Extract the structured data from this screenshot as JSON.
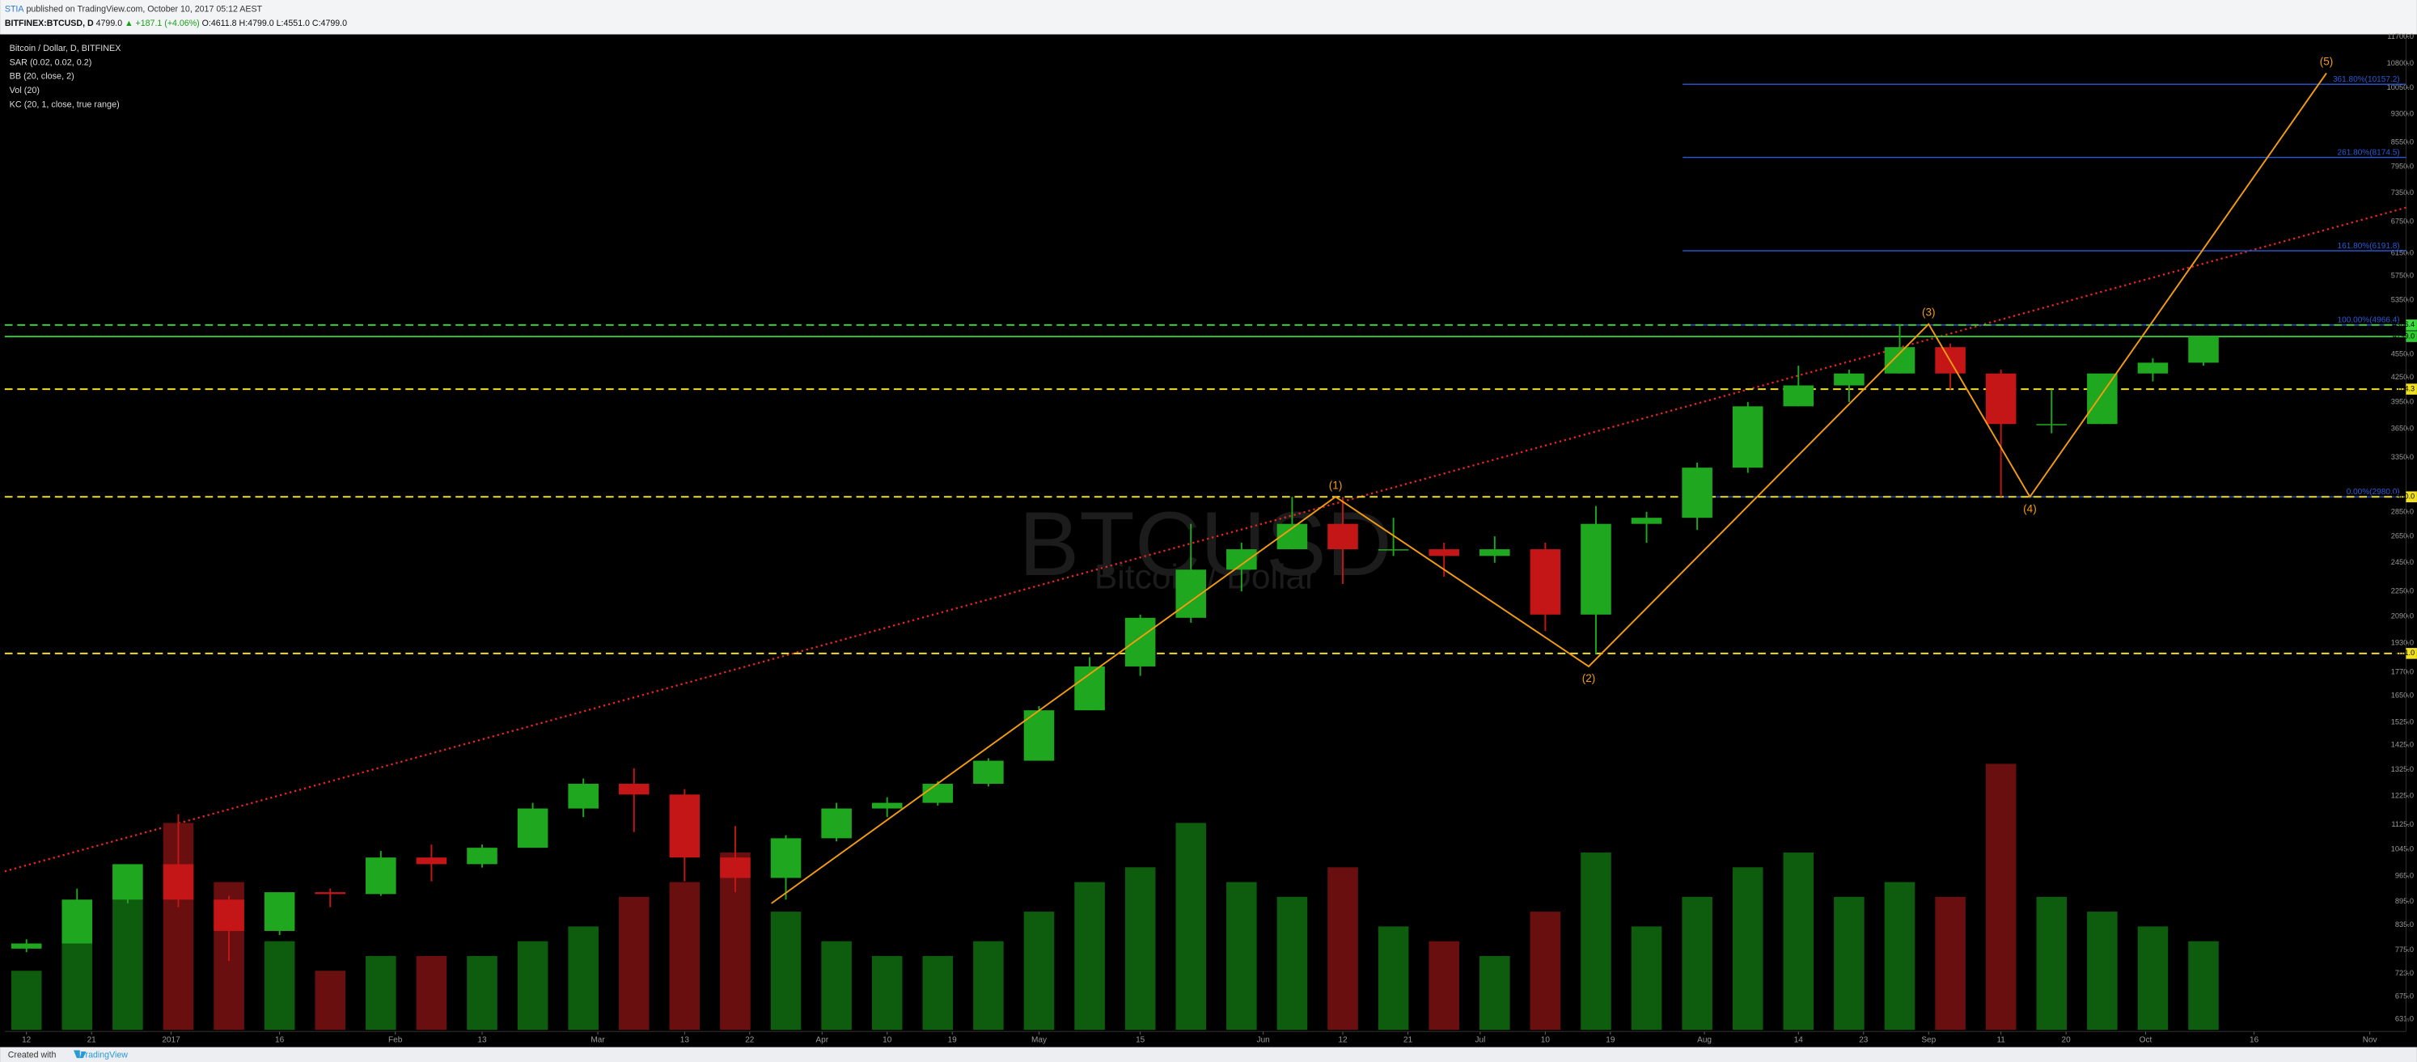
{
  "header": {
    "publisher": "STIA",
    "published": "published on TradingView.com, October 10, 2017 05:12 AEST",
    "symbol": "BITFINEX:BTCUSD, D",
    "last": "4799.0",
    "change": "▲ +187.1 (+4.06%)",
    "open": "O:4611.8",
    "high": "H:4799.0",
    "low": "L:4551.0",
    "close": "C:4799.0"
  },
  "legend": [
    "Bitcoin / Dollar, D, BITFINEX",
    "SAR (0.02, 0.02, 0.2)",
    "BB (20, close, 2)",
    "Vol (20)",
    "KC (20, 1, close, true range)"
  ],
  "footer": {
    "created": "Created with",
    "brand": "TradingView"
  },
  "chart_data": {
    "type": "candlestick",
    "watermark": "BTCUSD",
    "watermark_sub": "Bitcoin / Dollar",
    "log_scale": true,
    "up_color": "#1fa81f",
    "down_color": "#c41616",
    "volume_up_color": "#0e5c0e",
    "volume_down_color": "#6a0f0f",
    "x": [
      "2016-12-12",
      "2016-12-19",
      "2016-12-26",
      "2017-01-02",
      "2017-01-09",
      "2017-01-16",
      "2017-01-23",
      "2017-01-30",
      "2017-02-06",
      "2017-02-13",
      "2017-02-20",
      "2017-02-27",
      "2017-03-06",
      "2017-03-13",
      "2017-03-20",
      "2017-03-27",
      "2017-04-03",
      "2017-04-10",
      "2017-04-17",
      "2017-04-24",
      "2017-05-01",
      "2017-05-08",
      "2017-05-15",
      "2017-05-22",
      "2017-05-29",
      "2017-06-05",
      "2017-06-12",
      "2017-06-19",
      "2017-06-26",
      "2017-07-03",
      "2017-07-10",
      "2017-07-17",
      "2017-07-24",
      "2017-07-31",
      "2017-08-07",
      "2017-08-14",
      "2017-08-21",
      "2017-08-28",
      "2017-09-04",
      "2017-09-11",
      "2017-09-18",
      "2017-09-25",
      "2017-10-02",
      "2017-10-09"
    ],
    "open": [
      778,
      790,
      900,
      1000,
      900,
      820,
      920,
      915,
      1020,
      1000,
      1050,
      1180,
      1270,
      1230,
      1020,
      960,
      1080,
      1180,
      1200,
      1270,
      1360,
      1580,
      1800,
      2080,
      2400,
      2550,
      2750,
      2550,
      2550,
      2500,
      2550,
      2100,
      2750,
      2800,
      3250,
      3900,
      4150,
      4300,
      4650,
      4300,
      3700,
      3700,
      4300,
      4440
    ],
    "high": [
      800,
      930,
      1000,
      1160,
      910,
      920,
      930,
      1040,
      1060,
      1060,
      1200,
      1290,
      1330,
      1250,
      1120,
      1090,
      1200,
      1220,
      1280,
      1370,
      1600,
      1850,
      2100,
      2750,
      2600,
      2980,
      2980,
      2800,
      2600,
      2650,
      2600,
      2900,
      2850,
      3300,
      3950,
      4400,
      4350,
      4980,
      4700,
      4350,
      4100,
      4250,
      4500,
      4799
    ],
    "low": [
      770,
      790,
      890,
      880,
      750,
      810,
      880,
      910,
      950,
      990,
      1050,
      1150,
      1100,
      950,
      920,
      900,
      1070,
      1150,
      1190,
      1260,
      1360,
      1580,
      1750,
      2050,
      2250,
      2550,
      2300,
      2500,
      2350,
      2450,
      2000,
      1870,
      2600,
      2700,
      3200,
      3900,
      3950,
      4300,
      4100,
      2980,
      3600,
      3700,
      4200,
      4400
    ],
    "close": [
      790,
      900,
      1000,
      900,
      820,
      920,
      915,
      1020,
      1000,
      1050,
      1180,
      1270,
      1230,
      1020,
      960,
      1080,
      1180,
      1200,
      1270,
      1360,
      1580,
      1800,
      2080,
      2400,
      2550,
      2750,
      2550,
      2550,
      2500,
      2550,
      2100,
      2750,
      2800,
      3250,
      3900,
      4150,
      4300,
      4650,
      4300,
      3700,
      3700,
      4300,
      4440,
      4799
    ],
    "volume": [
      20,
      30,
      45,
      70,
      50,
      30,
      20,
      25,
      25,
      25,
      30,
      35,
      45,
      50,
      60,
      40,
      30,
      25,
      25,
      30,
      40,
      50,
      55,
      70,
      50,
      45,
      55,
      35,
      30,
      25,
      40,
      60,
      35,
      45,
      55,
      60,
      45,
      50,
      45,
      90,
      45,
      40,
      35,
      30
    ],
    "xlim": [
      "2016-12-09",
      "2017-11-06"
    ],
    "xticks": [
      {
        "value": "2016-12-12",
        "label": "12"
      },
      {
        "value": "2016-12-21",
        "label": "21"
      },
      {
        "value": "2017-01-01",
        "label": "2017"
      },
      {
        "value": "2017-01-16",
        "label": "16"
      },
      {
        "value": "2017-02-01",
        "label": "Feb"
      },
      {
        "value": "2017-02-13",
        "label": "13"
      },
      {
        "value": "2017-03-01",
        "label": "Mar"
      },
      {
        "value": "2017-03-13",
        "label": "13"
      },
      {
        "value": "2017-03-22",
        "label": "22"
      },
      {
        "value": "2017-04-01",
        "label": "Apr"
      },
      {
        "value": "2017-04-10",
        "label": "10"
      },
      {
        "value": "2017-04-19",
        "label": "19"
      },
      {
        "value": "2017-05-01",
        "label": "May"
      },
      {
        "value": "2017-05-15",
        "label": "15"
      },
      {
        "value": "2017-06-01",
        "label": "Jun"
      },
      {
        "value": "2017-06-12",
        "label": "12"
      },
      {
        "value": "2017-06-21",
        "label": "21"
      },
      {
        "value": "2017-07-01",
        "label": "Jul"
      },
      {
        "value": "2017-07-10",
        "label": "10"
      },
      {
        "value": "2017-07-19",
        "label": "19"
      },
      {
        "value": "2017-08-01",
        "label": "Aug"
      },
      {
        "value": "2017-08-14",
        "label": "14"
      },
      {
        "value": "2017-08-23",
        "label": "23"
      },
      {
        "value": "2017-09-01",
        "label": "Sep"
      },
      {
        "value": "2017-09-11",
        "label": "11"
      },
      {
        "value": "2017-09-20",
        "label": "20"
      },
      {
        "value": "2017-10-01",
        "label": "Oct"
      },
      {
        "value": "2017-10-16",
        "label": "16"
      },
      {
        "value": "2017-11-01",
        "label": "Nov"
      }
    ],
    "ylim": [
      611,
      11780
    ],
    "yticks": [
      {
        "value": 11700,
        "label": "11700.0"
      },
      {
        "value": 10800,
        "label": "10800.0"
      },
      {
        "value": 10050,
        "label": "10050.0"
      },
      {
        "value": 9300,
        "label": "9300.0"
      },
      {
        "value": 8550,
        "label": "8550.0"
      },
      {
        "value": 7950,
        "label": "7950.0"
      },
      {
        "value": 7350,
        "label": "7350.0"
      },
      {
        "value": 6750,
        "label": "6750.0"
      },
      {
        "value": 6150,
        "label": "6150.0"
      },
      {
        "value": 5750,
        "label": "5750.0"
      },
      {
        "value": 5350,
        "label": "5350.0"
      },
      {
        "value": 4550,
        "label": "4550.0"
      },
      {
        "value": 4250,
        "label": "4250.0"
      },
      {
        "value": 3950,
        "label": "3950.0"
      },
      {
        "value": 3650,
        "label": "3650.0"
      },
      {
        "value": 3350,
        "label": "3350.0"
      },
      {
        "value": 2850,
        "label": "2850.0"
      },
      {
        "value": 2650,
        "label": "2650.0"
      },
      {
        "value": 2450,
        "label": "2450.0"
      },
      {
        "value": 2250,
        "label": "2250.0"
      },
      {
        "value": 2090,
        "label": "2090.0"
      },
      {
        "value": 1930,
        "label": "1930.0"
      },
      {
        "value": 1770,
        "label": "1770.0"
      },
      {
        "value": 1650,
        "label": "1650.0"
      },
      {
        "value": 1525,
        "label": "1525.0"
      },
      {
        "value": 1425,
        "label": "1425.0"
      },
      {
        "value": 1325,
        "label": "1325.0"
      },
      {
        "value": 1225,
        "label": "1225.0"
      },
      {
        "value": 1125,
        "label": "1125.0"
      },
      {
        "value": 1045,
        "label": "1045.0"
      },
      {
        "value": 965,
        "label": "965.0"
      },
      {
        "value": 895,
        "label": "895.0"
      },
      {
        "value": 835,
        "label": "835.0"
      },
      {
        "value": 775,
        "label": "775.0"
      },
      {
        "value": 723,
        "label": "723.0"
      },
      {
        "value": 675,
        "label": "675.0"
      },
      {
        "value": 631,
        "label": "631.0"
      }
    ],
    "price_lines": [
      {
        "value": 4966.4,
        "label": "4966.4",
        "color": "#3ddc3d",
        "dashed": true
      },
      {
        "value": 4799,
        "label": "4799.0",
        "color": "#2ecc2e",
        "dashed": false
      },
      {
        "value": 4104.3,
        "label": "4104.3",
        "color": "#f0e020",
        "dashed": true
      },
      {
        "value": 2980,
        "label": "2980.0",
        "color": "#f0e020",
        "dashed": true
      },
      {
        "value": 1871,
        "label": "1871.0",
        "color": "#f0e020",
        "dashed": true
      }
    ],
    "fib_start": "2017-07-29",
    "fib_color": "#2a5bd6",
    "fib_levels": [
      {
        "value": 2980,
        "label": "0.00%(2980.0)"
      },
      {
        "value": 4966.4,
        "label": "100.00%(4966.4)"
      },
      {
        "value": 6191.8,
        "label": "161.80%(6191.8)"
      },
      {
        "value": 8174.5,
        "label": "261.80%(8174.5)"
      },
      {
        "value": 10157.2,
        "label": "361.80%(10157.2)"
      }
    ],
    "waves": {
      "color": "#f39c12",
      "x": [
        "2017-03-25",
        "2017-06-11",
        "2017-07-16",
        "2017-09-01",
        "2017-09-15",
        "2017-10-26"
      ],
      "y": [
        890,
        2980,
        1800,
        4980,
        2980,
        10500
      ],
      "labels": [
        null,
        "(1)",
        "(2)",
        "(3)",
        "(4)",
        "(5)"
      ]
    },
    "trendline": {
      "color": "#e8261f",
      "x": [
        "2016-12-09",
        "2017-11-06"
      ],
      "y": [
        979,
        7040
      ]
    }
  }
}
